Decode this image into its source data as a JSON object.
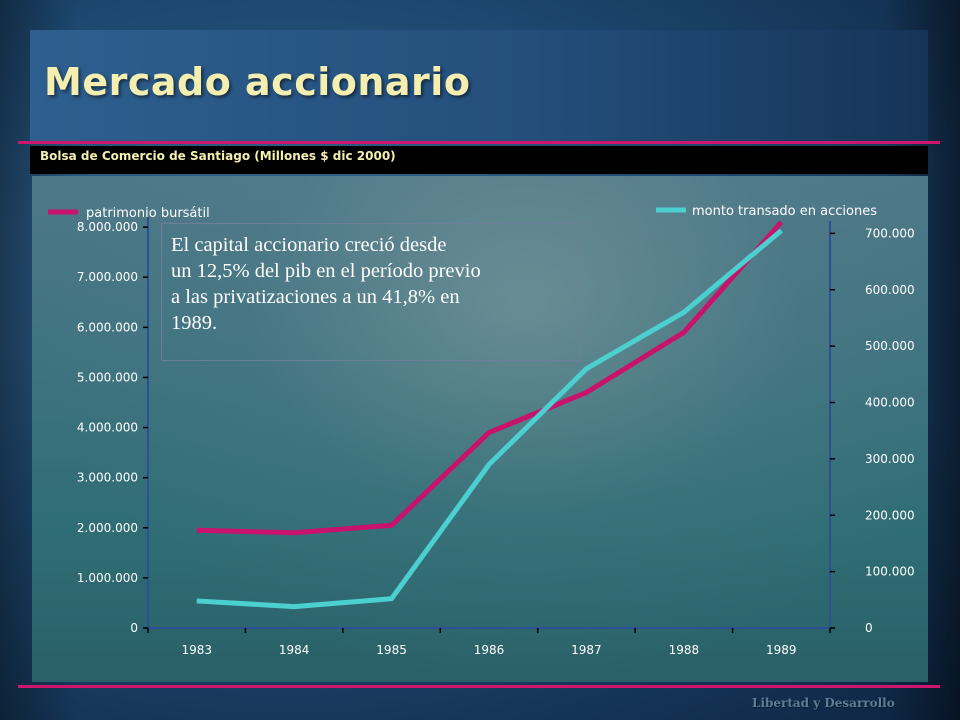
{
  "slide": {
    "title": "Mercado accionario",
    "subtitle": "Bolsa de Comercio de Santiago (Millones $ dic 2000)",
    "footer": "Libertad y Desarrollo",
    "annotation_lines": [
      "El capital accionario creció desde",
      "un 12,5% del pib en el período previo",
      "a las privatizaciones a un 41,8% en",
      "1989."
    ],
    "colors": {
      "title": "#f4efb0",
      "accent_rule": "#d0156e",
      "series_left": "#c8126b",
      "series_right": "#4ccfcf"
    }
  },
  "chart_data": {
    "type": "line",
    "categories": [
      "1983",
      "1984",
      "1985",
      "1986",
      "1987",
      "1988",
      "1989"
    ],
    "series": [
      {
        "name": "patrimonio bursátil",
        "axis": "left",
        "color": "#c8126b",
        "values": [
          1950000,
          1900000,
          2050000,
          3900000,
          4700000,
          5900000,
          8100000
        ]
      },
      {
        "name": "monto transado en acciones",
        "axis": "right",
        "color": "#4ccfcf",
        "values": [
          48000,
          38000,
          52000,
          290000,
          460000,
          560000,
          705000
        ]
      }
    ],
    "y_left": {
      "ylim": [
        0,
        9000000
      ],
      "ticks": [
        0,
        1000000,
        2000000,
        3000000,
        4000000,
        5000000,
        6000000,
        7000000,
        8000000
      ],
      "tick_labels": [
        "0",
        "1.000.000",
        "2.000.000",
        "3.000.000",
        "4.000.000",
        "5.000.000",
        "6.000.000",
        "7.000.000",
        "8.000.000"
      ]
    },
    "y_right": {
      "ylim": [
        0,
        800000
      ],
      "ticks": [
        0,
        100000,
        200000,
        300000,
        400000,
        500000,
        600000,
        700000
      ],
      "tick_labels": [
        "0",
        "100.000",
        "200.000",
        "300.000",
        "400.000",
        "500.000",
        "600.000",
        "700.000"
      ]
    },
    "legend": [
      {
        "label": "patrimonio bursátil",
        "placement": "top-left"
      },
      {
        "label": "monto transado en acciones",
        "placement": "top-right"
      }
    ],
    "grid": false
  }
}
